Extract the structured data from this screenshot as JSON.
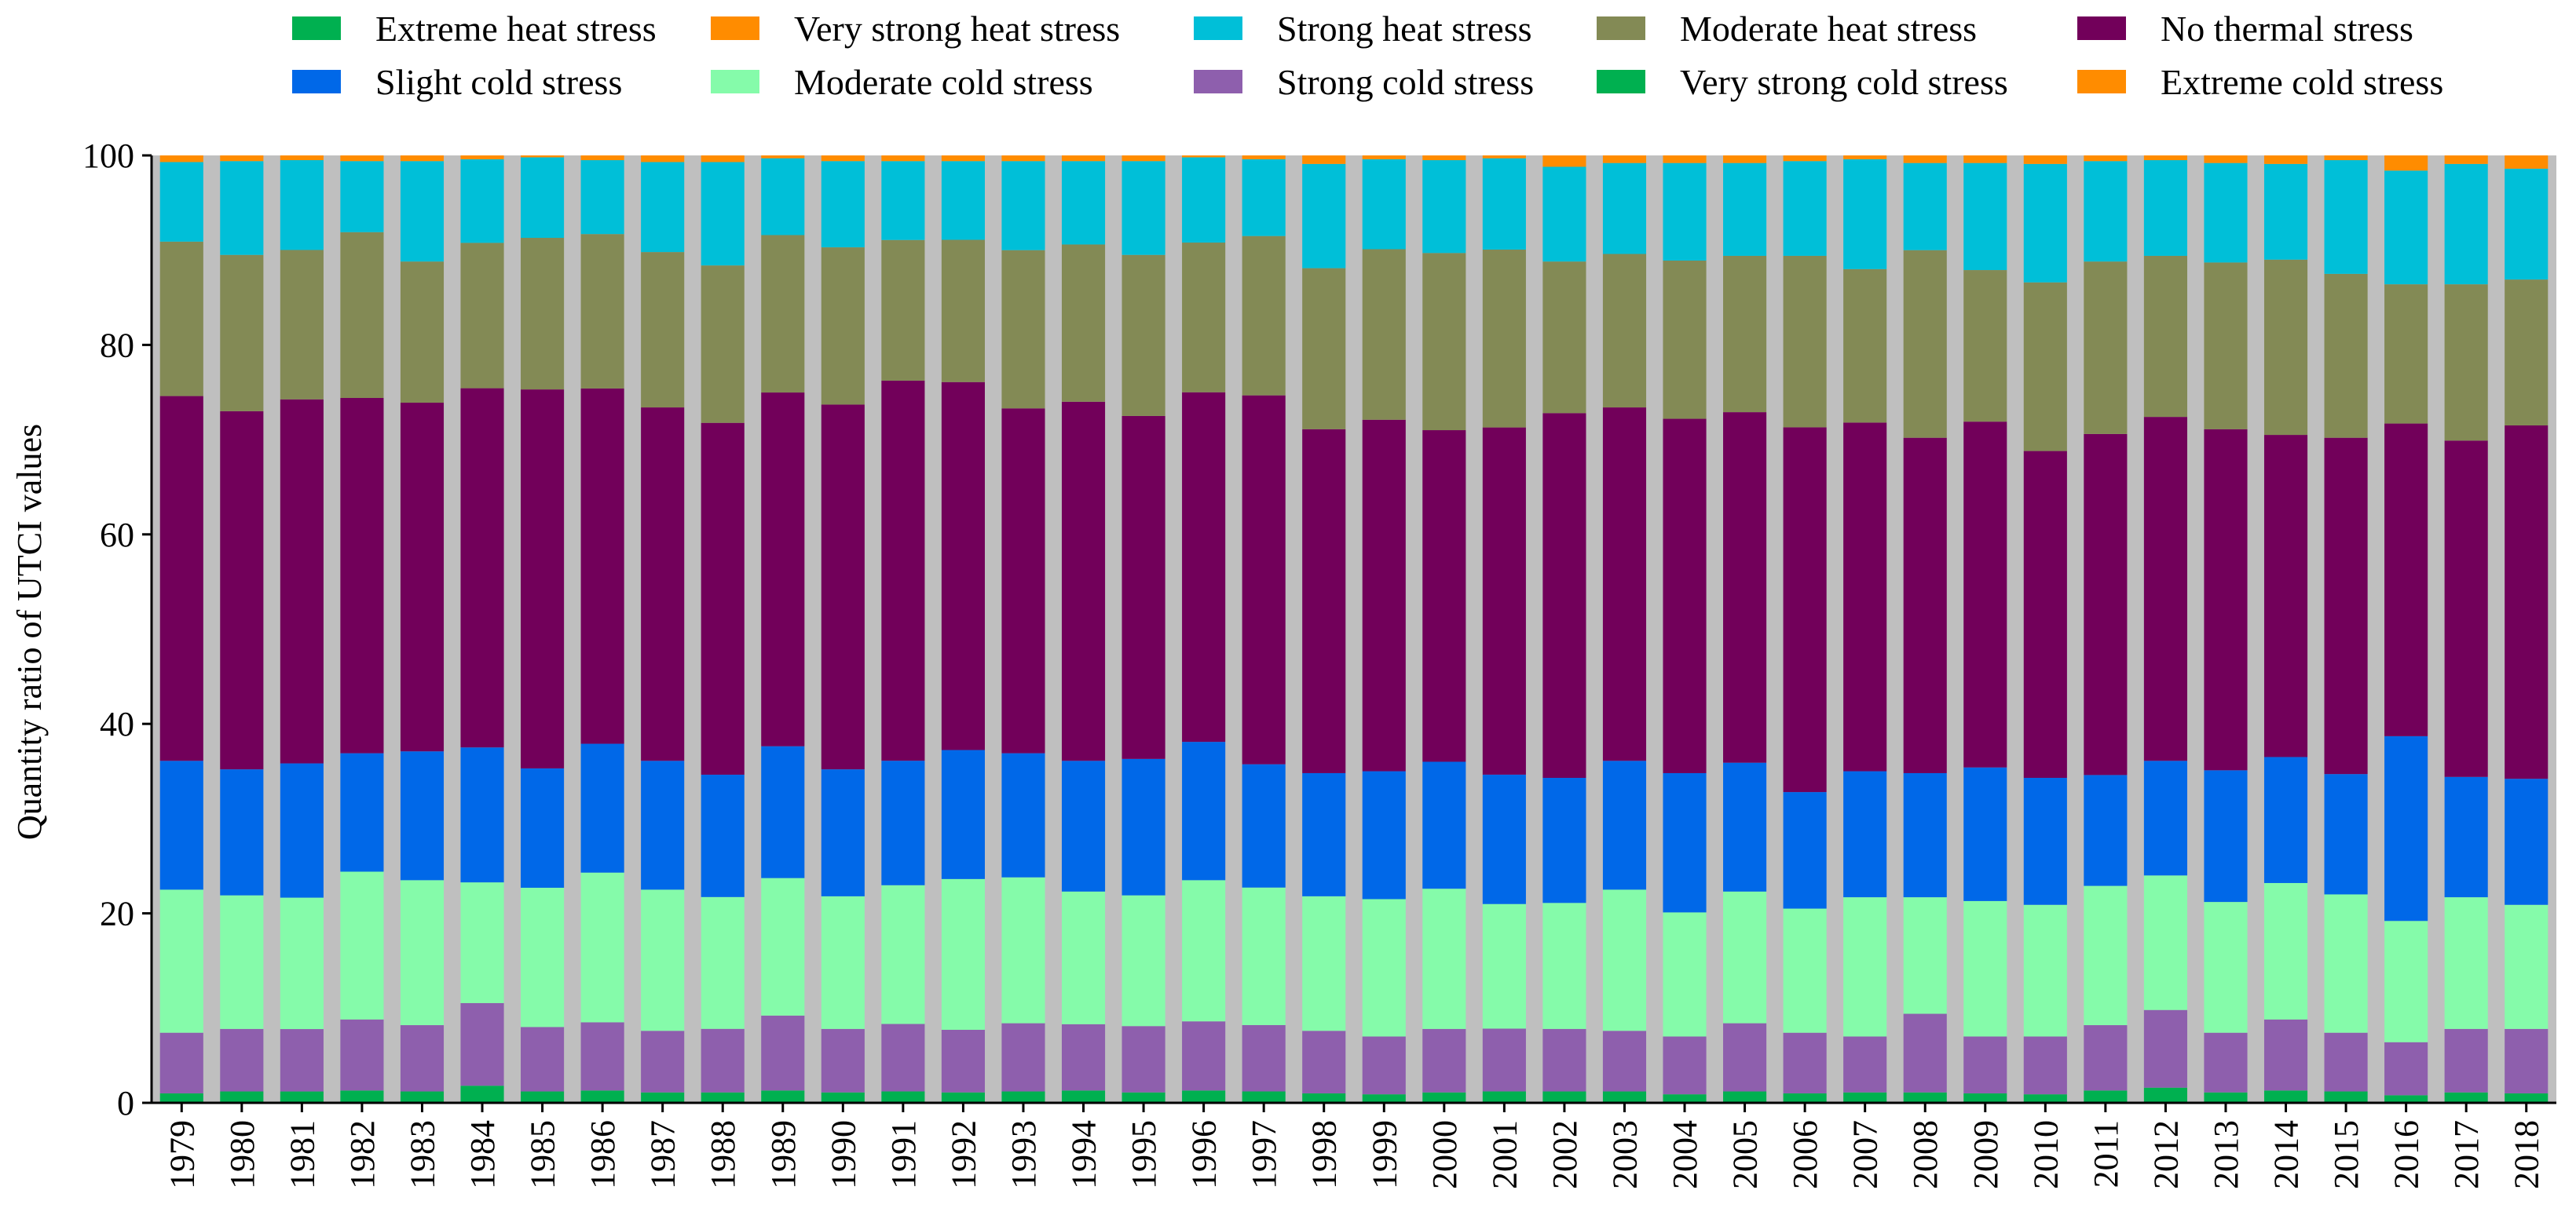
{
  "chart_data": {
    "type": "bar",
    "stacked": true,
    "title": "",
    "xlabel": "",
    "ylabel": "Quantity ratio of UTCI values",
    "ylim": [
      0,
      100
    ],
    "yticks": [
      0,
      20,
      40,
      60,
      80,
      100
    ],
    "grid": false,
    "legend_position": "top",
    "plot_background": "#bfbfbf",
    "categories": [
      "1979",
      "1980",
      "1981",
      "1982",
      "1983",
      "1984",
      "1985",
      "1986",
      "1987",
      "1988",
      "1989",
      "1990",
      "1991",
      "1992",
      "1993",
      "1994",
      "1995",
      "1996",
      "1997",
      "1998",
      "1999",
      "2000",
      "2001",
      "2002",
      "2003",
      "2004",
      "2005",
      "2006",
      "2007",
      "2008",
      "2009",
      "2010",
      "2011",
      "2012",
      "2013",
      "2014",
      "2015",
      "2016",
      "2017",
      "2018"
    ],
    "legend_order": [
      "Extreme heat stress",
      "Very strong heat stress",
      "Strong heat stress",
      "Moderate heat stress",
      "No thermal stress",
      "Slight cold stress",
      "Moderate cold stress",
      "Strong cold stress",
      "Very strong cold stress",
      "Extreme cold stress"
    ],
    "series": [
      {
        "name": "Very strong cold stress",
        "color": "#00b050",
        "values": [
          1.0,
          1.2,
          1.2,
          1.3,
          1.2,
          1.8,
          1.2,
          1.3,
          1.1,
          1.1,
          1.3,
          1.1,
          1.2,
          1.1,
          1.2,
          1.3,
          1.1,
          1.3,
          1.2,
          1.0,
          0.9,
          1.1,
          1.2,
          1.2,
          1.2,
          0.9,
          1.2,
          1.0,
          1.1,
          1.1,
          1.0,
          0.9,
          1.3,
          1.6,
          1.1,
          1.3,
          1.2,
          0.8,
          1.1,
          1.0
        ]
      },
      {
        "name": "Strong cold stress",
        "color": "#8e5fad",
        "values": [
          6.4,
          6.6,
          6.6,
          7.5,
          7.0,
          8.7,
          6.8,
          7.2,
          6.5,
          6.7,
          7.9,
          6.7,
          7.1,
          6.6,
          7.2,
          7.0,
          7.0,
          7.3,
          7.0,
          6.6,
          6.1,
          6.7,
          6.6,
          6.6,
          6.4,
          6.1,
          7.2,
          6.4,
          5.9,
          8.3,
          6.0,
          6.1,
          6.9,
          8.2,
          6.3,
          7.5,
          6.2,
          5.6,
          6.7,
          6.8
        ]
      },
      {
        "name": "Moderate cold stress",
        "color": "#85fbaa",
        "values": [
          15.1,
          14.1,
          13.9,
          15.6,
          15.3,
          12.7,
          14.7,
          15.8,
          14.9,
          13.9,
          14.5,
          14.0,
          14.6,
          15.9,
          15.4,
          14.0,
          13.8,
          14.9,
          14.5,
          14.2,
          14.5,
          14.8,
          13.1,
          13.3,
          14.9,
          13.1,
          13.9,
          13.1,
          14.7,
          12.3,
          14.3,
          13.9,
          14.7,
          14.2,
          13.8,
          14.4,
          14.6,
          12.8,
          13.9,
          13.1
        ]
      },
      {
        "name": "Slight cold stress",
        "color": "#0068e8",
        "values": [
          13.6,
          13.3,
          14.2,
          12.5,
          13.6,
          14.2,
          12.6,
          13.6,
          13.6,
          12.9,
          13.9,
          13.4,
          13.1,
          13.6,
          13.1,
          13.8,
          14.4,
          14.6,
          13.0,
          13.0,
          13.5,
          13.4,
          13.6,
          13.2,
          13.6,
          14.7,
          13.6,
          12.3,
          13.3,
          13.1,
          14.1,
          13.4,
          11.7,
          12.1,
          13.9,
          13.3,
          12.7,
          19.5,
          12.7,
          13.3
        ]
      },
      {
        "name": "No thermal stress",
        "color": "#72005a",
        "values": [
          38.5,
          37.8,
          38.5,
          37.5,
          36.8,
          37.8,
          40.0,
          37.5,
          37.3,
          37.1,
          37.3,
          38.5,
          40.0,
          38.8,
          36.4,
          37.9,
          36.2,
          36.9,
          38.9,
          36.3,
          37.1,
          35.0,
          36.5,
          38.5,
          37.3,
          37.4,
          37.0,
          38.5,
          36.8,
          35.4,
          36.5,
          34.5,
          36.0,
          36.3,
          36.0,
          34.0,
          35.5,
          33.0,
          35.5,
          37.3
        ]
      },
      {
        "name": "Moderate heat stress",
        "color": "#838a55",
        "values": [
          16.3,
          16.5,
          15.8,
          17.5,
          14.9,
          15.3,
          16.0,
          16.3,
          16.4,
          16.6,
          16.6,
          16.6,
          14.8,
          15.0,
          16.7,
          16.6,
          17.0,
          15.8,
          16.8,
          17.0,
          18.0,
          18.7,
          18.7,
          16.0,
          16.2,
          16.7,
          16.5,
          18.1,
          16.2,
          19.8,
          16.0,
          17.8,
          18.2,
          17.0,
          17.6,
          18.5,
          17.3,
          14.7,
          16.5,
          15.4
        ]
      },
      {
        "name": "Strong heat stress",
        "color": "#00bfd8",
        "values": [
          8.4,
          9.9,
          9.5,
          7.5,
          10.6,
          8.8,
          8.5,
          7.8,
          9.5,
          10.9,
          8.1,
          9.1,
          8.3,
          8.3,
          9.4,
          8.8,
          9.9,
          9.0,
          8.1,
          11.0,
          9.5,
          9.8,
          9.6,
          10.0,
          9.6,
          10.3,
          9.8,
          10.0,
          11.6,
          9.2,
          11.3,
          12.5,
          10.6,
          10.1,
          10.5,
          10.1,
          12.0,
          12.0,
          12.7,
          11.7
        ]
      },
      {
        "name": "Very strong heat stress",
        "color": "#ff8c00",
        "values": [
          0.7,
          0.6,
          0.5,
          0.6,
          0.6,
          0.4,
          0.2,
          0.5,
          0.7,
          0.7,
          0.3,
          0.6,
          0.6,
          0.6,
          0.6,
          0.6,
          0.6,
          0.2,
          0.4,
          0.9,
          0.4,
          0.5,
          0.3,
          1.2,
          0.8,
          0.8,
          0.8,
          0.6,
          0.4,
          0.8,
          0.8,
          0.9,
          0.6,
          0.5,
          0.8,
          0.9,
          0.5,
          1.6,
          0.9,
          1.4
        ]
      },
      {
        "name": "Extreme heat stress",
        "color": "#00b050",
        "values": [
          0,
          0,
          0,
          0,
          0,
          0,
          0,
          0,
          0,
          0,
          0,
          0,
          0,
          0,
          0,
          0,
          0,
          0,
          0,
          0,
          0,
          0,
          0,
          0,
          0,
          0,
          0,
          0,
          0,
          0,
          0,
          0,
          0,
          0,
          0,
          0,
          0,
          0,
          0,
          0
        ]
      },
      {
        "name": "Extreme cold stress",
        "color": "#ff8c00",
        "values": [
          0,
          0,
          0,
          0,
          0,
          0,
          0,
          0,
          0,
          0,
          0,
          0,
          0,
          0,
          0,
          0,
          0,
          0,
          0,
          0,
          0,
          0,
          0,
          0,
          0,
          0,
          0,
          0,
          0,
          0,
          0,
          0,
          0,
          0,
          0,
          0,
          0,
          0,
          0,
          0
        ]
      }
    ]
  }
}
